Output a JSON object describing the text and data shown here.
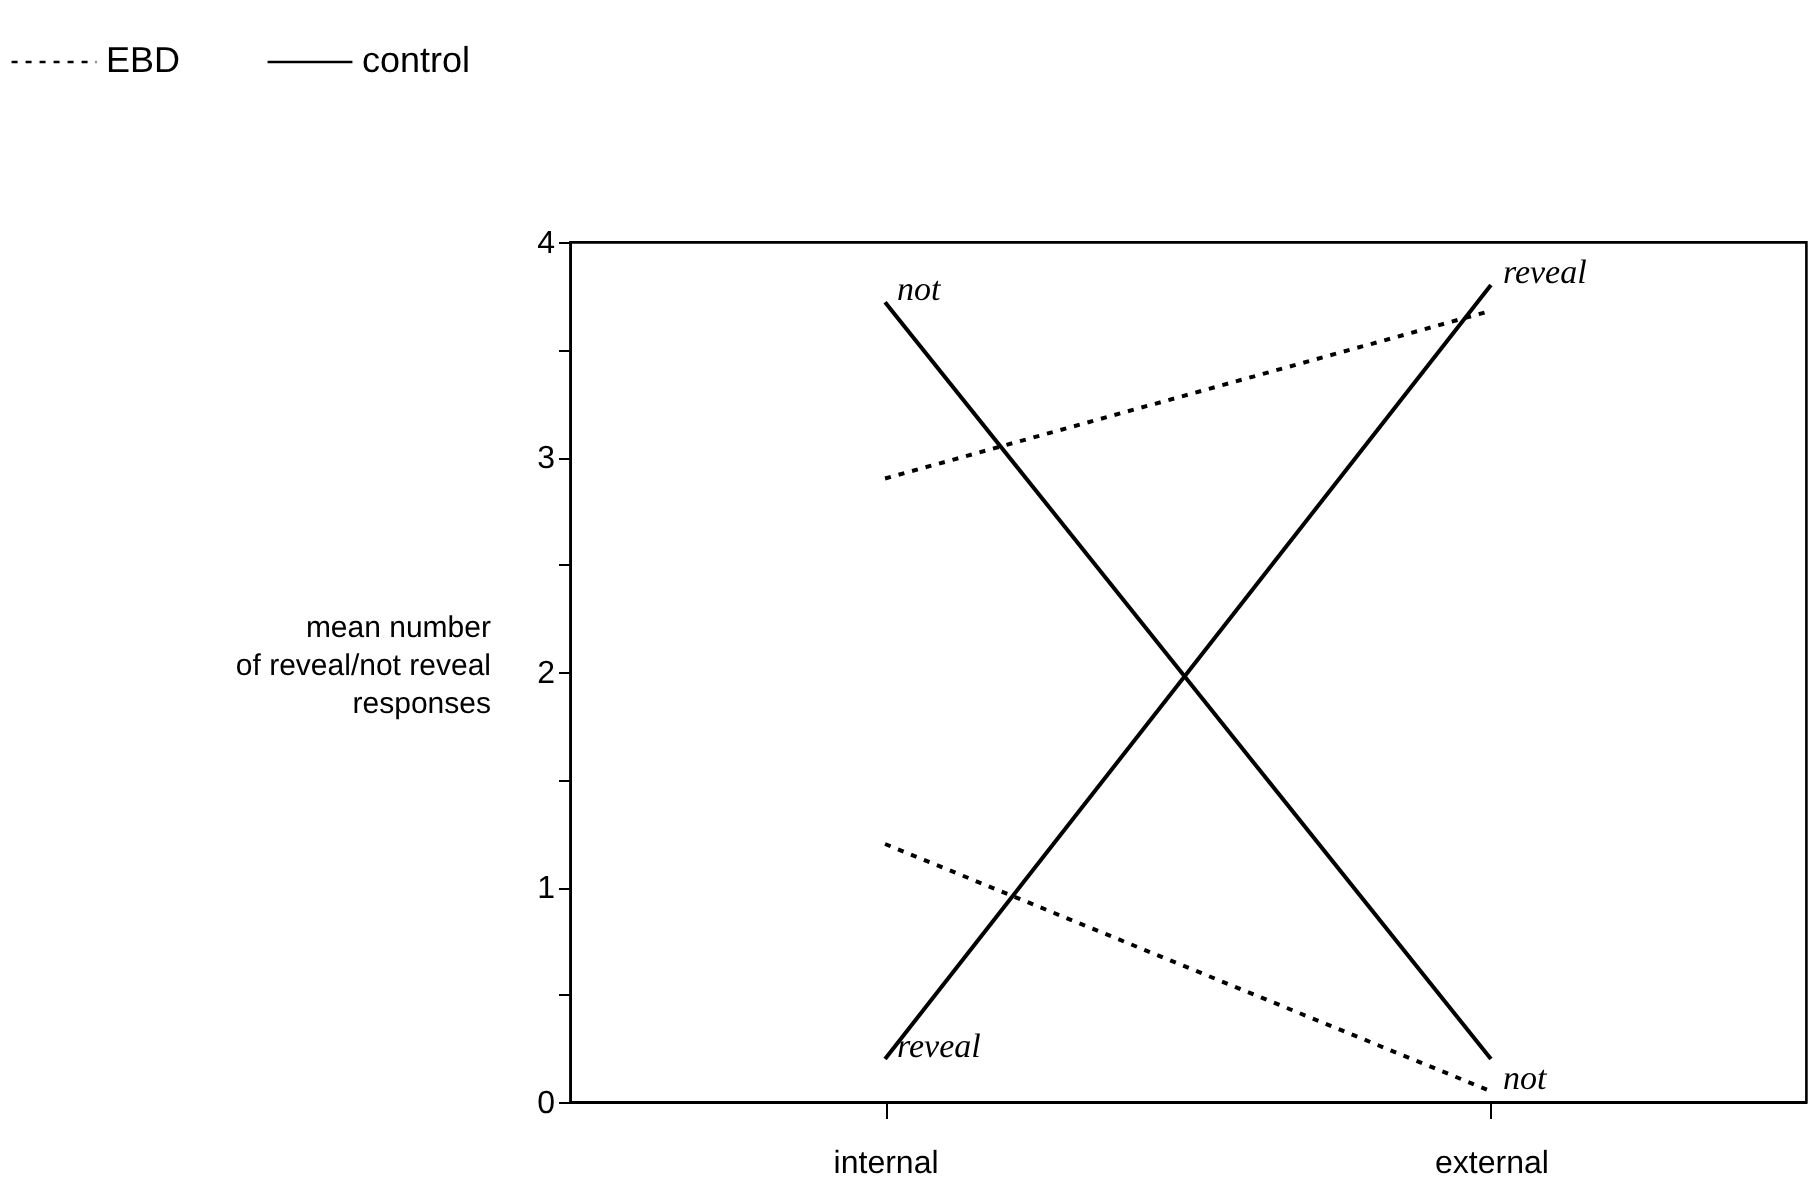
{
  "chart_data": {
    "type": "line",
    "ylabel": "mean number\nof reveal/not reveal\nresponses",
    "categories": [
      "internal",
      "external"
    ],
    "series": [
      {
        "name": "EBD",
        "color": "#000000",
        "line_style": "dotted",
        "values": [
          2.9,
          3.68
        ]
      },
      {
        "color": "#000000",
        "line_style": "dotted",
        "values": [
          1.2,
          0.05
        ]
      },
      {
        "name": "control",
        "color": "#000000",
        "line_style": "solid",
        "values": [
          3.72,
          0.2
        ]
      },
      {
        "color": "#000000",
        "line_style": "solid",
        "values": [
          0.2,
          3.8
        ]
      }
    ],
    "ylim": [
      0,
      4
    ],
    "yticks": [
      0,
      {
        "value": 0.5,
        "label": null
      },
      1,
      {
        "value": 1.5,
        "label": null
      },
      2,
      {
        "value": 2.5,
        "label": null
      },
      3,
      {
        "value": 3.5,
        "label": null
      },
      4
    ],
    "annotations": [
      {
        "text": "not",
        "x": "internal",
        "y": 3.72
      },
      {
        "text": "reveal",
        "x": "external",
        "y": 3.8
      },
      {
        "text": "reveal",
        "x": "internal",
        "y": 0.2
      },
      {
        "text": "not",
        "x": "external",
        "y": 0.05
      }
    ],
    "legend": "top left",
    "grid": false,
    "marker": "none"
  }
}
